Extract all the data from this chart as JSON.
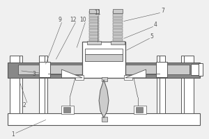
{
  "bg_color": "#f0f0f0",
  "line_color": "#555555",
  "fill_light": "#cccccc",
  "fill_dark": "#888888",
  "fill_white": "#ffffff",
  "label_fontsize": 5.5,
  "lw": 0.7
}
